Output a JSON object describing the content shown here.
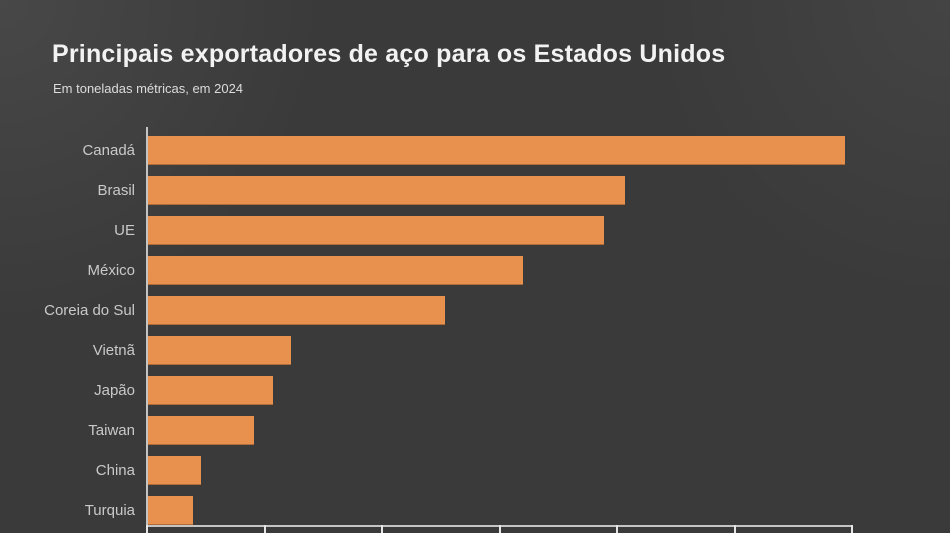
{
  "chart_data": {
    "type": "bar",
    "orientation": "horizontal",
    "title": "Principais exportadores de aço para os Estados Unidos",
    "subtitle": "Em toneladas métricas, em 2024",
    "categories": [
      "Canadá",
      "Brasil",
      "UE",
      "México",
      "Coreia do Sul",
      "Vietnã",
      "Japão",
      "Taiwan",
      "China",
      "Turquia"
    ],
    "values": [
      5.93,
      4.06,
      3.88,
      3.19,
      2.53,
      1.22,
      1.06,
      0.9,
      0.45,
      0.38
    ],
    "values_note": "estimated from bar lengths in millions of metric tons; x-axis tick labels are cropped out of view at the bottom of the image",
    "xlabel": "",
    "ylabel": "",
    "xlim": [
      0,
      6
    ],
    "x_ticks": [
      0,
      1,
      2,
      3,
      4,
      5,
      6
    ],
    "grid": false,
    "legend": null,
    "colors": {
      "bar": "#e8914f",
      "background": "#3a3a3a",
      "axis": "#c4c4c4",
      "tick": "#e6e6e6",
      "title_text": "#f2f2f2",
      "subtitle_text": "#dcdcdc",
      "label_text": "#c9c9c9"
    }
  }
}
